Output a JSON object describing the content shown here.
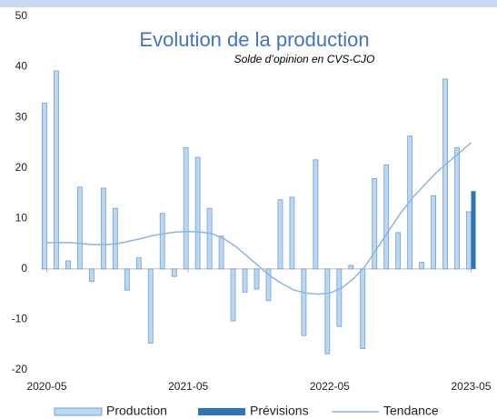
{
  "chart_data": {
    "type": "bar",
    "title": "Evolution de la production",
    "subtitle": "Solde d’opinion en CVS-CJO",
    "categories": [
      "2020-05",
      null,
      null,
      null,
      null,
      null,
      null,
      null,
      null,
      null,
      null,
      null,
      "2021-05",
      null,
      null,
      null,
      null,
      null,
      null,
      null,
      null,
      null,
      null,
      null,
      "2022-05",
      null,
      null,
      null,
      null,
      null,
      null,
      null,
      null,
      null,
      null,
      null,
      "2023-05"
    ],
    "series": [
      {
        "name": "Production",
        "type": "bar",
        "color": "#bdd7ee",
        "values": [
          32.8,
          39.2,
          1.6,
          16.2,
          -2.5,
          16,
          12,
          -4.2,
          2.2,
          -14.7,
          11,
          -1.5,
          24,
          22.1,
          12,
          6.5,
          -10.3,
          -4.6,
          -4,
          -6.3,
          13.7,
          14.2,
          -13.2,
          21.6,
          -16.8,
          -11.4,
          0.7,
          -15.8,
          17.9,
          20.6,
          7.2,
          26.3,
          1.3,
          14.5,
          37.6,
          24,
          11.3
        ]
      },
      {
        "name": "Prévisions",
        "type": "bar",
        "color": "#2e75b6",
        "values": [
          null,
          null,
          null,
          null,
          null,
          null,
          null,
          null,
          null,
          null,
          null,
          null,
          null,
          null,
          null,
          null,
          null,
          null,
          null,
          null,
          null,
          null,
          null,
          null,
          null,
          null,
          null,
          null,
          null,
          null,
          null,
          null,
          null,
          null,
          null,
          null,
          15.4
        ]
      },
      {
        "name": "Tendance",
        "type": "line",
        "color": "#8db4e2",
        "values": [
          5.2,
          5.2,
          5.2,
          5,
          4.8,
          4.8,
          5,
          5.5,
          6,
          6.6,
          7,
          7.3,
          7.4,
          7.3,
          7,
          6,
          4.5,
          2.5,
          0.5,
          -1.5,
          -3,
          -4.2,
          -4.8,
          -5,
          -4.8,
          -3.8,
          -2,
          0.5,
          4,
          7.5,
          11,
          14,
          16.5,
          19,
          21,
          23,
          25
        ]
      }
    ],
    "ylim": [
      -20,
      50
    ],
    "yticks": [
      -20,
      -10,
      0,
      10,
      20,
      30,
      40,
      50
    ],
    "grid": false,
    "legend": "bottom"
  }
}
